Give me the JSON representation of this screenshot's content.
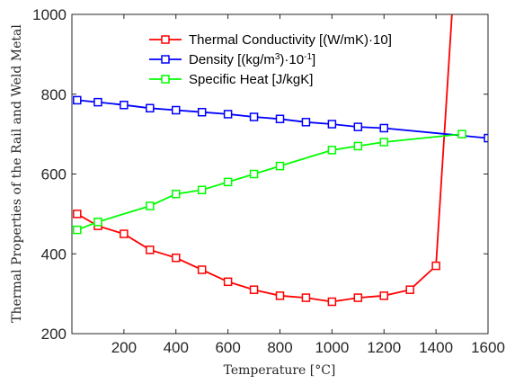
{
  "chart_data": {
    "type": "line",
    "xlabel": "Temperature [°C]",
    "ylabel": "Thermal Properties of the Rail and Weld Metal",
    "xlim": [
      0,
      1600
    ],
    "ylim": [
      200,
      1000
    ],
    "xticks": [
      200,
      400,
      600,
      800,
      1000,
      1200,
      1400,
      1600
    ],
    "yticks": [
      200,
      400,
      600,
      800,
      1000
    ],
    "grid": false,
    "legend_position": "top-right",
    "series": [
      {
        "name": "Thermal Conductivity [(W/mK)·10]",
        "color": "#ff0000",
        "marker": "square",
        "x": [
          20,
          100,
          200,
          300,
          400,
          500,
          600,
          700,
          800,
          900,
          1000,
          1100,
          1200,
          1300,
          1400,
          1500
        ],
        "y": [
          500,
          470,
          450,
          410,
          390,
          360,
          330,
          310,
          295,
          290,
          280,
          290,
          295,
          310,
          370,
          1400
        ]
      },
      {
        "name_parts": [
          "Density [(kg/m",
          "3",
          ")·10",
          "-1",
          "]"
        ],
        "color": "#0000ff",
        "marker": "square",
        "x": [
          20,
          100,
          200,
          300,
          400,
          500,
          600,
          700,
          800,
          900,
          1000,
          1100,
          1200,
          1600
        ],
        "y": [
          785,
          780,
          773,
          765,
          760,
          755,
          750,
          743,
          738,
          730,
          725,
          718,
          715,
          690
        ]
      },
      {
        "name": "Specific Heat [J/kgK]",
        "color": "#00ff00",
        "marker": "square",
        "x": [
          20,
          100,
          300,
          400,
          500,
          600,
          700,
          800,
          1000,
          1100,
          1200,
          1500
        ],
        "y": [
          460,
          480,
          520,
          550,
          560,
          580,
          600,
          620,
          660,
          670,
          680,
          700
        ]
      }
    ]
  }
}
